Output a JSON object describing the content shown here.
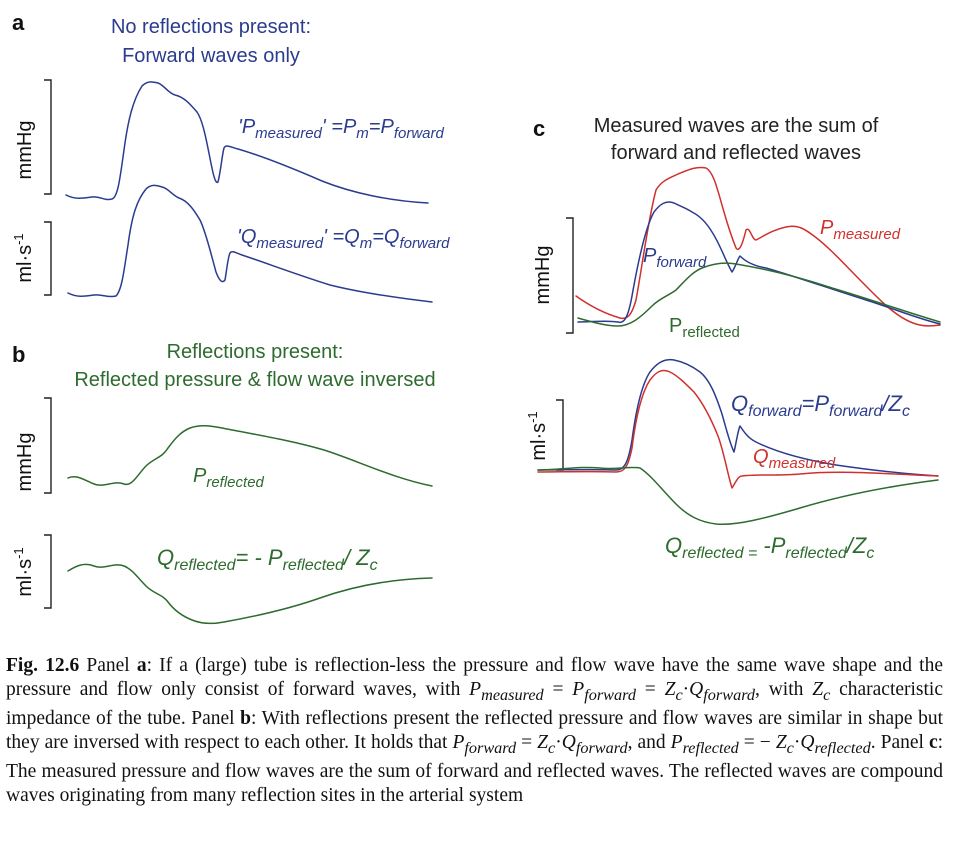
{
  "colors": {
    "blue": "#2b3c8f",
    "green": "#2e6b2e",
    "red": "#d0312d",
    "dark": "#111111"
  },
  "panels": {
    "a": {
      "letter": "a",
      "title_line1": "No reflections present:",
      "title_line2": "Forward waves only",
      "ylabel_pressure": "mmHg",
      "ylabel_flow": "ml·s",
      "flow_exp": "-1",
      "eq_p": {
        "q1": "'",
        "P": "P",
        "measured": "measured",
        "q2": "'",
        "eq1": " =P",
        "m": "m",
        "eq2": "=P",
        "forward": "forward"
      },
      "eq_q": {
        "q1": "'",
        "Q": "Q",
        "measured": "measured",
        "q2": "'",
        "eq1": " =Q",
        "m": "m",
        "eq2": "=Q",
        "forward": "forward"
      }
    },
    "b": {
      "letter": "b",
      "title_line1": "Reflections present:",
      "title_line2": "Reflected pressure & flow wave inversed",
      "ylabel_pressure": "mmHg",
      "ylabel_flow": "ml·s",
      "flow_exp": "-1",
      "label_p": {
        "P": "P",
        "sub": "reflected"
      },
      "eq_q": {
        "Q": "Q",
        "sub": "reflected",
        "mid": "= - P",
        "sub2": "reflected",
        "end": "/ Z",
        "c": "c"
      }
    },
    "c": {
      "letter": "c",
      "title_line1": "Measured waves are the sum of",
      "title_line2": "forward and reflected waves",
      "ylabel_pressure": "mmHg",
      "ylabel_flow": "ml·s",
      "flow_exp": "-1",
      "label_pmeasured": {
        "P": "P",
        "sub": "measured"
      },
      "label_pforward": {
        "P": "P",
        "sub": "forward"
      },
      "label_preflected": {
        "P": "P",
        "sub": "reflected"
      },
      "eq_qforward": {
        "Q": "Q",
        "sub": "forward",
        "mid": "=P",
        "sub2": "forward",
        "end": "/Z",
        "c": "c"
      },
      "label_qmeasured": {
        "Q": "Q",
        "sub": "measured"
      },
      "eq_qreflected": {
        "Q": "Q",
        "sub": "reflected =",
        "mid": " -P",
        "sub2": "reflected",
        "end": "/Z",
        "c": "c"
      }
    }
  },
  "caption": {
    "fig_label": "Fig. 12.6",
    "s1": "  Panel ",
    "a": "a",
    "s2": ": If a (large) tube is reflection-less the pressure and flow wave have the same wave shape and the pressure and flow only consist of forward waves, with ",
    "p1": "P",
    "p1sub": "measured",
    "s3": " = ",
    "p2": "P",
    "p2sub": "forward",
    "s4": " = ",
    "z1": "Z",
    "z1sub": "c",
    "s5": "·",
    "q1": "Q",
    "q1sub": "forward",
    "s6": ", with ",
    "z2": "Z",
    "z2sub": "c",
    "s7": " characteristic impedance of the tube. Panel ",
    "b": "b",
    "s8": ": With reflections present the reflected pressure and flow waves are similar in shape but they are inversed with respect to each other. It holds that ",
    "p3": "P",
    "p3sub": "forward",
    "s9": " = ",
    "z3": "Z",
    "z3sub": "c",
    "s10": "·",
    "q2": "Q",
    "q2sub": "forward",
    "s11": ", and ",
    "p4": "P",
    "p4sub": "reflected",
    "s12": " = − ",
    "z4": "Z",
    "z4sub": "c",
    "s13": "·",
    "q3": "Q",
    "q3sub": "reflected",
    "s14": ". Panel ",
    "c": "c",
    "s15": ": The measured pressure and flow waves are the sum of forward and reflected waves. The reflected waves are compound waves originating from many reflection sites in the arterial system"
  }
}
